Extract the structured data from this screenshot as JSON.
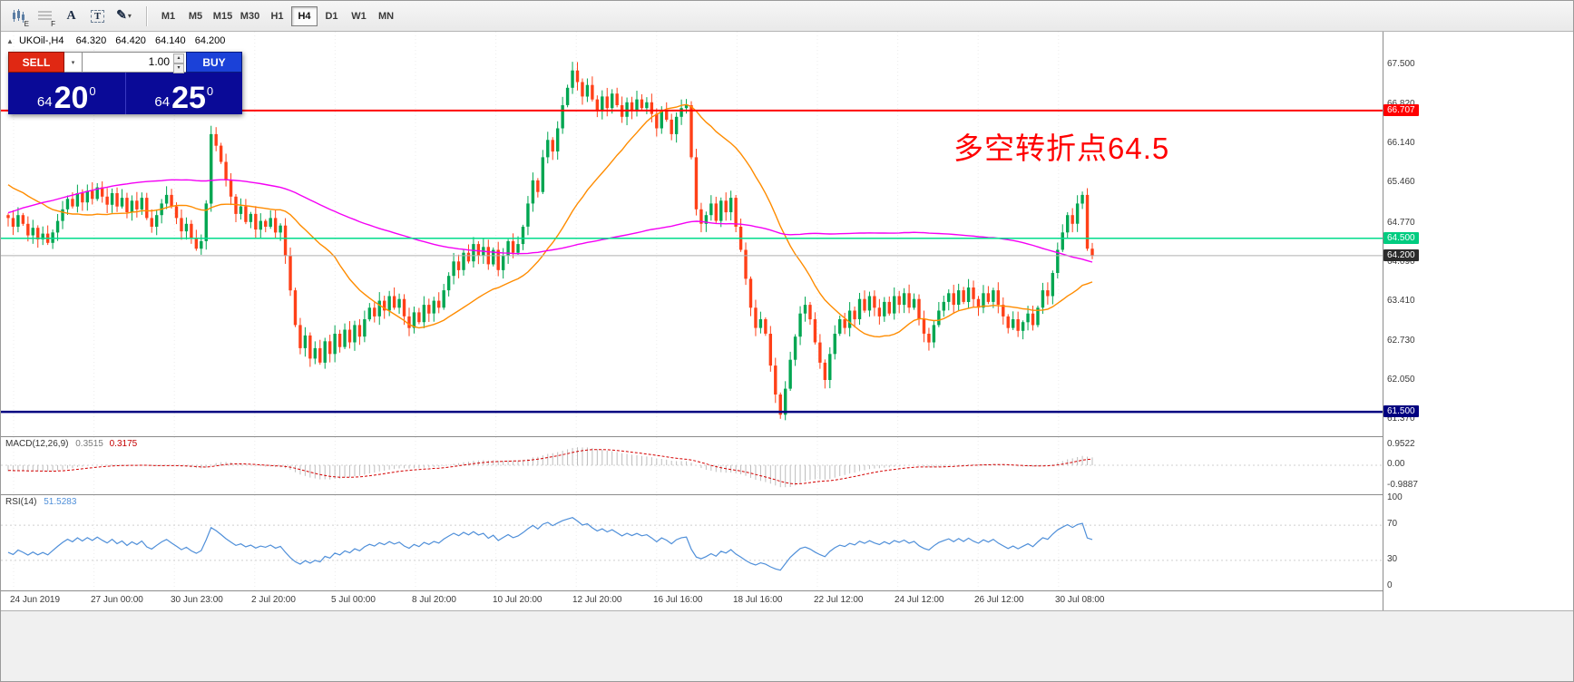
{
  "toolbar": {
    "tools": [
      {
        "name": "candlestick-chart-icon",
        "sub": "E"
      },
      {
        "name": "grid-icon",
        "sub": "F"
      },
      {
        "name": "text-label-icon",
        "glyph": "A"
      },
      {
        "name": "text-box-icon",
        "glyph": "T"
      },
      {
        "name": "draw-pencil-icon",
        "glyph": "✎",
        "caret": "▾"
      }
    ],
    "timeframes": [
      "M1",
      "M5",
      "M15",
      "M30",
      "H1",
      "H4",
      "D1",
      "W1",
      "MN"
    ],
    "active_timeframe": "H4"
  },
  "chart_header": {
    "collapse_icon": "▲",
    "symbol": "UKOil-,H4",
    "open": "64.320",
    "high": "64.420",
    "low": "64.140",
    "close": "64.200"
  },
  "trade_panel": {
    "sell_label": "SELL",
    "buy_label": "BUY",
    "volume": "1.00",
    "combo_caret": "▾",
    "spin_up": "▴",
    "spin_down": "▾",
    "sell_price": {
      "head": "64",
      "big": "20",
      "sup": "0"
    },
    "buy_price": {
      "head": "64",
      "big": "25",
      "sup": "0"
    }
  },
  "annotation": {
    "text": "多空转折点64.5",
    "color": "#FF0000"
  },
  "macd_panel": {
    "name": "MACD(12,26,9)",
    "value_main": "0.3515",
    "value_signal": "0.3175",
    "axis": [
      {
        "text": "0.9522",
        "v": 0.9522
      },
      {
        "text": "0.00",
        "v": 0
      },
      {
        "text": "-0.9887",
        "v": -0.9887
      }
    ]
  },
  "rsi_panel": {
    "name": "RSI(14)",
    "value": "51.5283",
    "axis": [
      {
        "text": "100",
        "v": 100
      },
      {
        "text": "70",
        "v": 70
      },
      {
        "text": "30",
        "v": 30
      },
      {
        "text": "0",
        "v": 0
      }
    ],
    "levels": [
      70,
      30
    ]
  },
  "chart_data": {
    "type": "candlestick",
    "symbol": "UKOil-",
    "timeframe": "H4",
    "title": "UKOil-,H4",
    "last_ohlc": {
      "open": 64.32,
      "high": 64.42,
      "low": 64.14,
      "close": 64.2
    },
    "closes": [
      64.85,
      64.7,
      64.9,
      64.75,
      64.55,
      64.68,
      64.48,
      64.58,
      64.42,
      64.6,
      64.8,
      65.0,
      65.18,
      65.05,
      65.28,
      65.12,
      65.32,
      65.18,
      65.38,
      65.22,
      65.08,
      65.28,
      65.05,
      65.2,
      64.95,
      65.15,
      65.0,
      65.2,
      64.85,
      64.7,
      64.9,
      65.1,
      65.25,
      65.05,
      64.85,
      64.62,
      64.75,
      64.5,
      64.32,
      64.45,
      65.1,
      66.3,
      66.1,
      65.82,
      65.5,
      65.22,
      64.92,
      65.05,
      64.78,
      64.92,
      64.65,
      64.8,
      64.7,
      64.85,
      64.6,
      64.72,
      64.2,
      63.6,
      63.0,
      62.6,
      62.82,
      62.42,
      62.6,
      62.35,
      62.72,
      62.5,
      62.85,
      62.62,
      62.92,
      62.7,
      63.0,
      62.8,
      63.1,
      63.3,
      63.15,
      63.42,
      63.25,
      63.5,
      63.3,
      63.45,
      63.15,
      62.95,
      63.22,
      63.05,
      63.35,
      63.2,
      63.42,
      63.3,
      63.6,
      63.85,
      64.1,
      63.95,
      64.25,
      64.1,
      64.4,
      64.2,
      64.35,
      64.05,
      64.3,
      63.95,
      64.2,
      64.45,
      64.25,
      64.4,
      64.7,
      65.1,
      65.5,
      65.3,
      65.9,
      66.2,
      66.0,
      66.4,
      66.8,
      67.1,
      67.4,
      67.2,
      66.95,
      67.15,
      66.9,
      66.7,
      66.95,
      66.75,
      67.0,
      66.8,
      66.6,
      66.85,
      66.7,
      66.9,
      66.75,
      66.85,
      66.65,
      66.4,
      66.7,
      66.55,
      66.3,
      66.6,
      66.75,
      66.8,
      65.9,
      65.0,
      64.75,
      64.9,
      65.1,
      64.8,
      65.15,
      64.95,
      65.2,
      64.7,
      64.3,
      63.8,
      63.3,
      62.95,
      63.1,
      62.85,
      62.3,
      61.8,
      61.45,
      61.9,
      62.4,
      62.8,
      63.2,
      63.35,
      63.1,
      62.7,
      62.35,
      62.05,
      62.5,
      62.85,
      63.1,
      62.95,
      63.25,
      63.1,
      63.45,
      63.25,
      63.5,
      63.3,
      63.15,
      63.4,
      63.2,
      63.5,
      63.35,
      63.55,
      63.3,
      63.45,
      63.1,
      62.85,
      62.7,
      63.0,
      63.25,
      63.4,
      63.55,
      63.35,
      63.6,
      63.4,
      63.65,
      63.45,
      63.3,
      63.55,
      63.4,
      63.6,
      63.35,
      63.15,
      62.95,
      63.1,
      62.9,
      63.05,
      63.2,
      63.0,
      63.3,
      63.6,
      63.5,
      63.9,
      64.3,
      64.6,
      64.9,
      64.75,
      65.1,
      65.25,
      64.32,
      64.2
    ],
    "y_ticks": [
      "67.500",
      "66.820",
      "66.140",
      "65.460",
      "64.770",
      "64.090",
      "63.410",
      "62.730",
      "62.050",
      "61.370"
    ],
    "x_labels": [
      "24 Jun 2019",
      "27 Jun 00:00",
      "30 Jun 23:00",
      "2 Jul 20:00",
      "5 Jul 00:00",
      "8 Jul 20:00",
      "10 Jul 20:00",
      "12 Jul 20:00",
      "16 Jul 16:00",
      "18 Jul 16:00",
      "22 Jul 12:00",
      "24 Jul 12:00",
      "26 Jul 12:00",
      "30 Jul 08:00"
    ],
    "hlines": [
      {
        "price": 66.707,
        "label": "66.707",
        "color": "#FF0000",
        "badge_bg": "#FF0000",
        "badge_fg": "#FFFFFF",
        "width": 2
      },
      {
        "price": 64.5,
        "label": "64.500",
        "color": "#00DC8C",
        "badge_bg": "#00CC80",
        "badge_fg": "#FFFFFF",
        "width": 1.5
      },
      {
        "price": 64.2,
        "label": "64.200",
        "color": "#B0B0B0",
        "badge_bg": "#2B2B2B",
        "badge_fg": "#FFFFFF",
        "width": 1
      },
      {
        "price": 61.5,
        "label": "61.500",
        "color": "#000080",
        "badge_bg": "#000080",
        "badge_fg": "#FFFFFF",
        "width": 2.5
      }
    ],
    "colors": {
      "up": "#00A651",
      "down": "#FF4018",
      "macd_hist": "#BDBDBD",
      "macd_signal": "#D40000",
      "rsi": "#4F8FD9"
    },
    "overlays": [
      {
        "name": "MA fast",
        "period": 26,
        "color": "#FF8C00"
      },
      {
        "name": "MA slow",
        "period": 100,
        "color": "#F400F4"
      }
    ],
    "indicators": {
      "macd": {
        "fast": 12,
        "slow": 26,
        "signal": 9,
        "main_value": 0.3515,
        "signal_value": 0.3175
      },
      "rsi": {
        "period": 14,
        "value": 51.5283
      }
    }
  }
}
